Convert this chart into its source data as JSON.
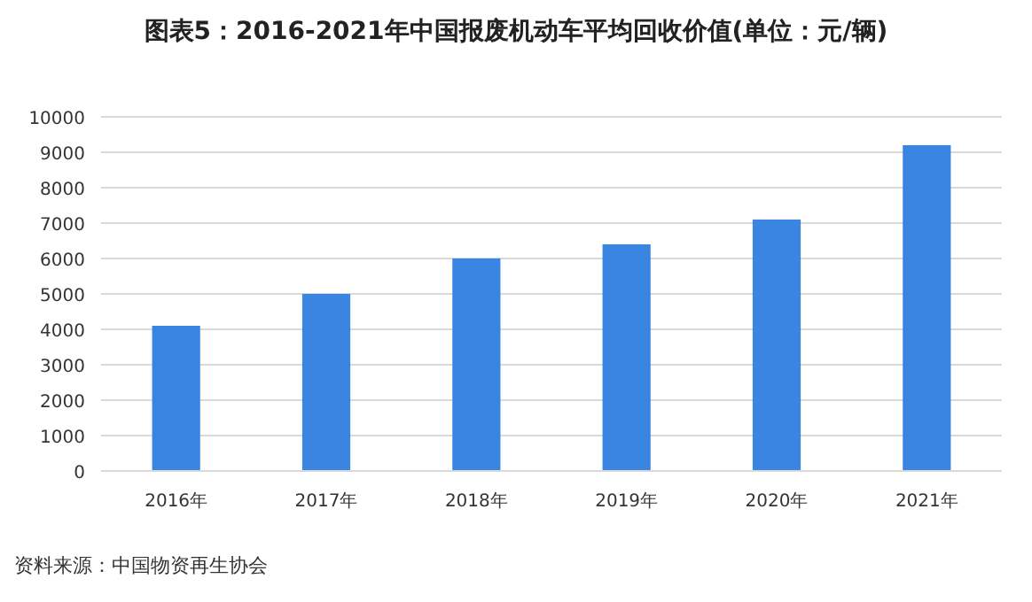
{
  "chart_data": {
    "type": "bar",
    "title": "图表5：2016-2021年中国报废机动车平均回收价值(单位：元/辆)",
    "categories": [
      "2016年",
      "2017年",
      "2018年",
      "2019年",
      "2020年",
      "2021年"
    ],
    "values": [
      4100,
      5000,
      6000,
      6400,
      7100,
      9200
    ],
    "color": "#3a85e1",
    "ylim": [
      0,
      10000
    ],
    "yticks": [
      0,
      1000,
      2000,
      3000,
      4000,
      5000,
      6000,
      7000,
      8000,
      9000,
      10000
    ],
    "grid": "y",
    "annotations": [
      "资料来源：中国物资再生协会"
    ]
  }
}
